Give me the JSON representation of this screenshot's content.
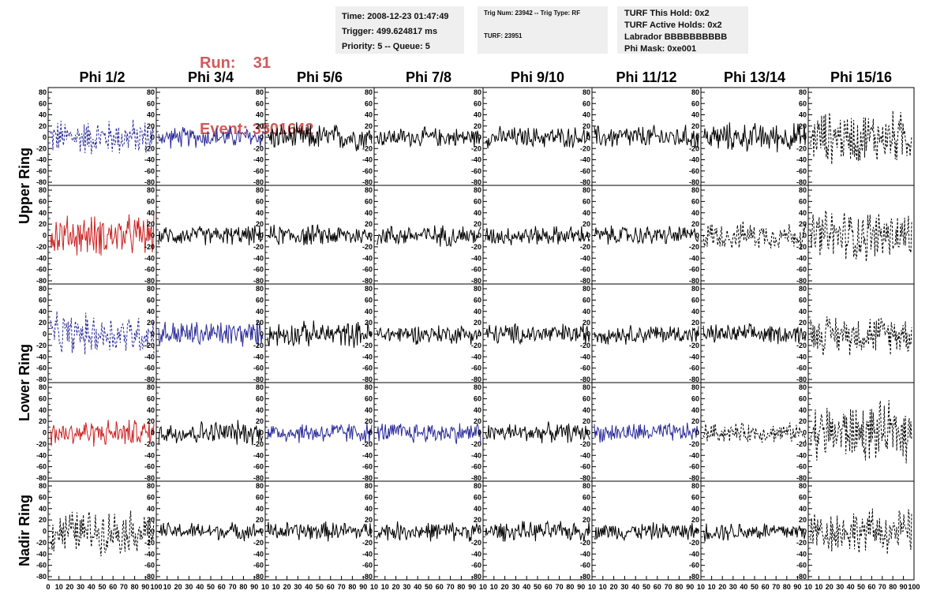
{
  "header": {
    "run_label": "Run:",
    "run_value": "31",
    "event_label": "Event:",
    "event_value": "3501642"
  },
  "info_time": {
    "time": "Time: 2008-12-23 01:47:49",
    "trigger": "Trigger: 499.624817 ms",
    "priority": "Priority: 5 -- Queue: 5"
  },
  "info_trig": {
    "trig": "Trig Num: 23942 -- Trig Type: RF",
    "turf": "TURF: 23951"
  },
  "info_turf": {
    "hold": "TURF This Hold: 0x2",
    "active": "TURF Active Holds: 0x2",
    "labrador": "Labrador BBBBBBBBBB",
    "mask": "Phi Mask: 0xe001"
  },
  "colors": {
    "red": "#cc2222",
    "blue": "#2a2a9a",
    "black": "#000000"
  },
  "chart_data": {
    "type": "line",
    "columns": [
      "Phi 1/2",
      "Phi 3/4",
      "Phi 5/6",
      "Phi 7/8",
      "Phi 9/10",
      "Phi 11/12",
      "Phi 13/14",
      "Phi 15/16"
    ],
    "rows": [
      "Upper Ring",
      "Lower Ring",
      "Nadir Ring"
    ],
    "ylim": [
      -80,
      80
    ],
    "yticks": [
      80,
      60,
      40,
      20,
      0,
      -20,
      -40,
      -60,
      -80
    ],
    "xlim": [
      0,
      100
    ],
    "xticks_first": [
      "0",
      "10",
      "20",
      "30",
      "40",
      "50",
      "60",
      "70",
      "80",
      "90",
      "100"
    ],
    "xticks_middle": [
      "10",
      "20",
      "30",
      "40",
      "50",
      "60",
      "70",
      "80",
      "90",
      "10"
    ],
    "xticks_last": [
      "10",
      "20",
      "30",
      "40",
      "50",
      "60",
      "70",
      "80",
      "90",
      "100"
    ],
    "panel_styles": [
      [
        "blue-dash",
        "blue",
        "black",
        "black",
        "black",
        "black",
        "black",
        "black-dash"
      ],
      [
        "red",
        "black",
        "black",
        "black",
        "black",
        "black",
        "black-dash",
        "black-dash"
      ],
      [
        "blue-dash",
        "blue",
        "black",
        "black",
        "black",
        "black",
        "black",
        "black-dash"
      ],
      [
        "red",
        "black",
        "blue",
        "blue",
        "black",
        "blue",
        "black-dash",
        "black-dash"
      ],
      [
        "black-dash",
        "black",
        "black",
        "black",
        "black",
        "black",
        "black",
        "black-dash"
      ]
    ],
    "panel_amplitudes": [
      [
        38,
        22,
        28,
        20,
        22,
        25,
        30,
        55
      ],
      [
        42,
        20,
        22,
        22,
        20,
        20,
        28,
        55
      ],
      [
        42,
        28,
        26,
        20,
        22,
        20,
        20,
        40
      ],
      [
        28,
        25,
        22,
        22,
        20,
        20,
        20,
        60
      ],
      [
        45,
        18,
        20,
        20,
        20,
        18,
        20,
        45
      ]
    ]
  }
}
